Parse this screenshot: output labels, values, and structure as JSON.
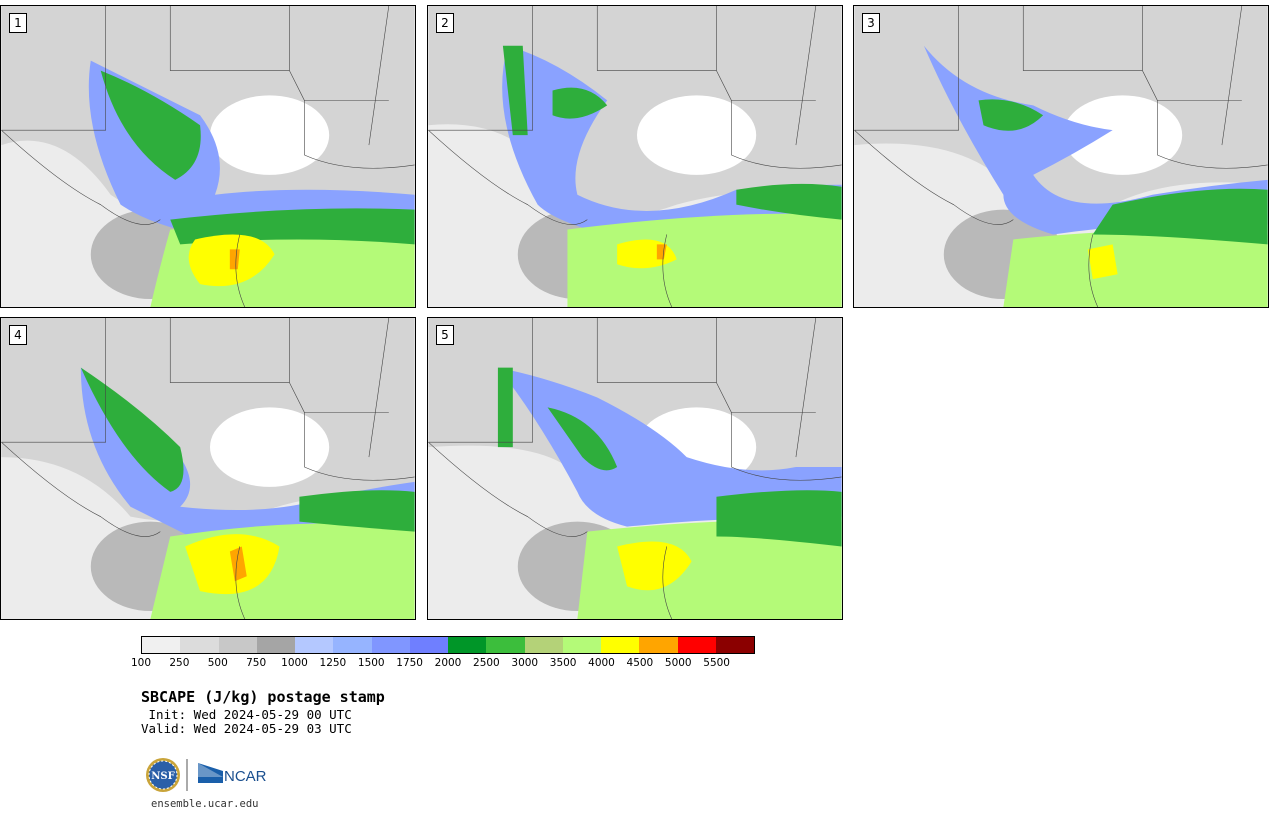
{
  "panels": [
    {
      "label": "1"
    },
    {
      "label": "2"
    },
    {
      "label": "3"
    },
    {
      "label": "4"
    },
    {
      "label": "5"
    }
  ],
  "colorbar": {
    "colors": [
      "#f0f0f0",
      "#dcdcdc",
      "#c8c8c8",
      "#a5a5a5",
      "#b4c8ff",
      "#96b4ff",
      "#8096ff",
      "#6f7fff",
      "#009628",
      "#3cbe3c",
      "#b4d278",
      "#b4fa78",
      "#ffff00",
      "#ffa500",
      "#ff0000",
      "#8b0000"
    ],
    "ticks": [
      "100",
      "250",
      "500",
      "750",
      "1000",
      "1250",
      "1500",
      "1750",
      "2000",
      "2500",
      "3000",
      "3500",
      "4000",
      "4500",
      "5000",
      "5500"
    ]
  },
  "title": "SBCAPE (J/kg) postage stamp",
  "init": " Init: Wed 2024-05-29 00 UTC",
  "valid": "Valid: Wed 2024-05-29 03 UTC",
  "logos": {
    "nsf": "NSF",
    "ncar": "NCAR"
  },
  "site": "ensemble.ucar.edu"
}
